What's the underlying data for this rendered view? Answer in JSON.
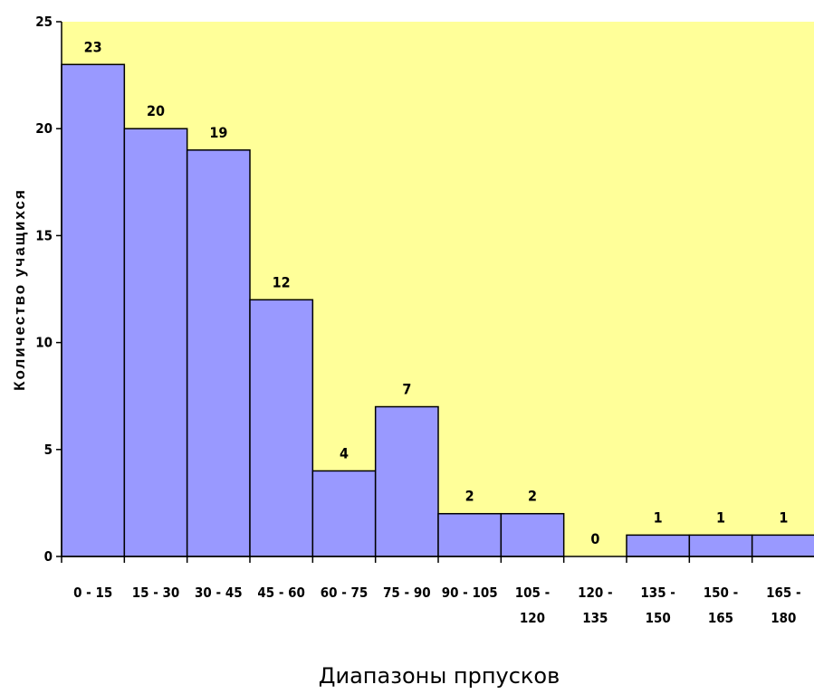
{
  "chart_data": {
    "type": "bar",
    "categories": [
      [
        "0 - 15"
      ],
      [
        "15 - 30"
      ],
      [
        "30 - 45"
      ],
      [
        "45 - 60"
      ],
      [
        "60 - 75"
      ],
      [
        "75 - 90"
      ],
      [
        "90 - 105"
      ],
      [
        "105 -",
        "120"
      ],
      [
        "120 -",
        "135"
      ],
      [
        "135 -",
        "150"
      ],
      [
        "150 -",
        "165"
      ],
      [
        "165 -",
        "180"
      ]
    ],
    "values": [
      23,
      20,
      19,
      12,
      4,
      7,
      2,
      2,
      0,
      1,
      1,
      1
    ],
    "title": "",
    "xlabel": "Диапазоны прпусков",
    "ylabel": "Количество учащихся",
    "ylim": [
      0,
      25
    ],
    "yticks": [
      0,
      5,
      10,
      15,
      20,
      25
    ],
    "grid": false,
    "legend": "none",
    "colors": {
      "plot_background": "#ffff99",
      "bar_fill": "#9999ff",
      "bar_stroke": "#000000"
    }
  }
}
